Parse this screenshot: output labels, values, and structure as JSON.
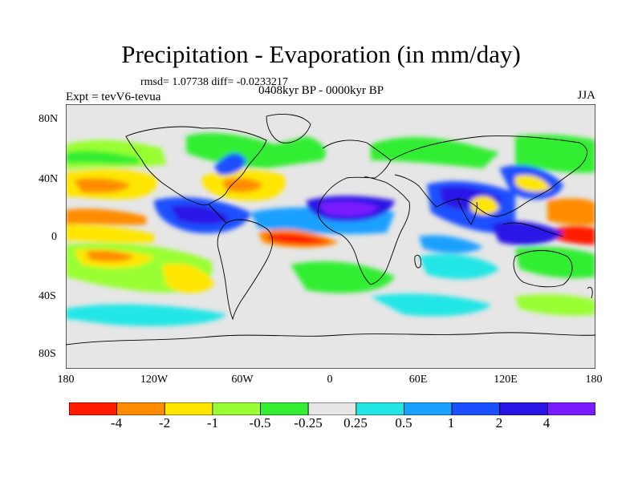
{
  "title": "Precipitation - Evaporation (in mm/day)",
  "stats_text": "rmsd= 1.07738 diff= -0.0233217",
  "experiment_text": "Expt = tevV6-tevua",
  "period_text": "0408kyr BP - 0000kyr BP",
  "season": "JJA",
  "lat_ticks": [
    "80N",
    "40N",
    "0",
    "40S",
    "80S"
  ],
  "lon_ticks": [
    "180",
    "120W",
    "60W",
    "0",
    "60E",
    "120E",
    "180"
  ],
  "colorbar": {
    "labels": [
      "-4",
      "-2",
      "-1",
      "-0.5",
      "-0.25",
      "0.25",
      "0.5",
      "1",
      "2",
      "4"
    ],
    "colors": [
      "#ff1a00",
      "#ff8c00",
      "#ffe600",
      "#99ff33",
      "#33ee33",
      "#e6e6e6",
      "#22e6e6",
      "#1aa0ff",
      "#1a50ff",
      "#2a14e6",
      "#7a1aff"
    ]
  }
}
